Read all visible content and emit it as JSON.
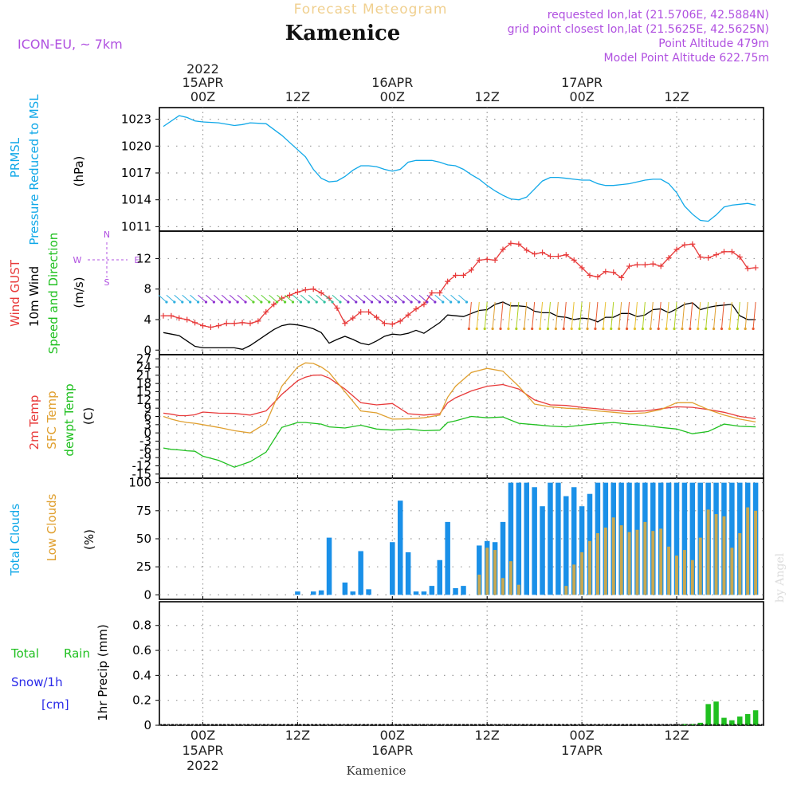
{
  "header": {
    "title": "Forecast Meteogram",
    "station": "Kamenice",
    "model": "ICON-EU, ~ 7km",
    "requested": "requested lon,lat (21.5706E, 42.5884N)",
    "gridpoint": "grid point closest lon,lat (21.5625E, 42.5625N)",
    "point_alt": "Point Altitude 479m",
    "model_alt": "Model Point Altitude 622.75m",
    "credit": "by Angel",
    "footer_station": "Kamenice"
  },
  "time_axis": {
    "top_labels": [
      {
        "l1": "2022",
        "l2": "15APR",
        "l3": "00Z",
        "h": 0
      },
      {
        "l1": "",
        "l2": "",
        "l3": "12Z",
        "h": 12
      },
      {
        "l1": "",
        "l2": "16APR",
        "l3": "00Z",
        "h": 24
      },
      {
        "l1": "",
        "l2": "",
        "l3": "12Z",
        "h": 36
      },
      {
        "l1": "",
        "l2": "17APR",
        "l3": "00Z",
        "h": 48
      },
      {
        "l1": "",
        "l2": "",
        "l3": "12Z",
        "h": 60
      }
    ],
    "bottom_labels": [
      {
        "l1": "00Z",
        "l2": "15APR",
        "l3": "2022",
        "h": 0
      },
      {
        "l1": "12Z",
        "l2": "",
        "l3": "",
        "h": 12
      },
      {
        "l1": "00Z",
        "l2": "16APR",
        "l3": "",
        "h": 24
      },
      {
        "l1": "12Z",
        "l2": "",
        "l3": "",
        "h": 36
      },
      {
        "l1": "00Z",
        "l2": "17APR",
        "l3": "",
        "h": 48
      },
      {
        "l1": "12Z",
        "l2": "",
        "l3": "",
        "h": 60
      }
    ]
  },
  "colors": {
    "pressure": "#10a8e8",
    "gust": "#e83a3a",
    "wind": "#000000",
    "t2m": "#e83a3a",
    "sfc": "#e0a030",
    "dew": "#20c020",
    "total_clouds": "#1a90e8",
    "low_clouds": "#c8a850",
    "rain": "#20c020",
    "snow": "#2a2ae8",
    "meta": "#b050e0",
    "title": "#f0d090",
    "grid": "#999999"
  },
  "chart_data": [
    {
      "type": "line",
      "panel": "pressure",
      "ylabel1": "PRMSL",
      "ylabel2": "Pressure Reduced to MSL",
      "unit": "(hPa)",
      "yticks": [
        1011,
        1014,
        1017,
        1020,
        1023
      ],
      "ylim": [
        1010.5,
        1024.3
      ],
      "x_hours": [
        -5,
        -3,
        -2,
        -1,
        0,
        2,
        4,
        5,
        6,
        8,
        10,
        11,
        12,
        13,
        14,
        15,
        16,
        17,
        18,
        19,
        20,
        21,
        22,
        23,
        24,
        25,
        26,
        27,
        28,
        29,
        30,
        31,
        32,
        33,
        34,
        35,
        36,
        37,
        38,
        39,
        40,
        41,
        42,
        43,
        44,
        45,
        46,
        47,
        48,
        49,
        50,
        51,
        52,
        53,
        54,
        55,
        56,
        57,
        58,
        59,
        60,
        61,
        62,
        63,
        64,
        65,
        66,
        67,
        68,
        69,
        70
      ],
      "series": [
        {
          "name": "PRMSL",
          "values": [
            1022.2,
            1023.4,
            1023.2,
            1022.8,
            1022.7,
            1022.6,
            1022.3,
            1022.4,
            1022.6,
            1022.5,
            1021.2,
            1020.4,
            1019.6,
            1018.8,
            1017.4,
            1016.4,
            1016.0,
            1016.1,
            1016.6,
            1017.3,
            1017.8,
            1017.8,
            1017.7,
            1017.4,
            1017.2,
            1017.4,
            1018.2,
            1018.4,
            1018.4,
            1018.4,
            1018.2,
            1017.9,
            1017.8,
            1017.4,
            1016.8,
            1016.3,
            1015.6,
            1015.0,
            1014.5,
            1014.1,
            1014.0,
            1014.3,
            1015.2,
            1016.1,
            1016.5,
            1016.5,
            1016.4,
            1016.3,
            1016.2,
            1016.2,
            1015.8,
            1015.6,
            1015.6,
            1015.7,
            1015.8,
            1016.0,
            1016.2,
            1016.3,
            1016.3,
            1015.8,
            1014.8,
            1013.3,
            1012.4,
            1011.7,
            1011.6,
            1012.3,
            1013.2,
            1013.4,
            1013.5,
            1013.6,
            1013.4
          ]
        }
      ]
    },
    {
      "type": "line",
      "panel": "wind",
      "ylabel1": "Wind GUST",
      "ylabel2": "10m Wind",
      "ylabel3": "Speed and Direction",
      "unit": "(m/s)",
      "compass": {
        "w": "W",
        "e": "E",
        "n": "N",
        "s": "S"
      },
      "yticks": [
        0,
        4,
        8,
        12
      ],
      "ylim": [
        -0.6,
        15.6
      ],
      "x_hours": [
        -5,
        -4,
        -3,
        -2,
        -1,
        0,
        1,
        2,
        3,
        4,
        5,
        6,
        7,
        8,
        9,
        10,
        11,
        12,
        13,
        14,
        15,
        16,
        17,
        18,
        19,
        20,
        21,
        22,
        23,
        24,
        25,
        26,
        27,
        28,
        29,
        30,
        31,
        32,
        33,
        34,
        35,
        36,
        37,
        38,
        39,
        40,
        41,
        42,
        43,
        44,
        45,
        46,
        47,
        48,
        49,
        50,
        51,
        52,
        53,
        54,
        55,
        56,
        57,
        58,
        59,
        60,
        61,
        62,
        63,
        64,
        65,
        66,
        67,
        68,
        69,
        70
      ],
      "series": [
        {
          "name": "Wind GUST",
          "values": [
            4.5,
            4.5,
            4.2,
            4.0,
            3.6,
            3.2,
            3.0,
            3.2,
            3.5,
            3.5,
            3.6,
            3.5,
            3.8,
            5.0,
            6.0,
            6.8,
            7.2,
            7.6,
            7.9,
            8.0,
            7.5,
            6.8,
            5.5,
            3.5,
            4.2,
            5.0,
            5.0,
            4.3,
            3.5,
            3.4,
            3.8,
            4.6,
            5.4,
            6.0,
            7.5,
            7.5,
            9.0,
            9.8,
            9.8,
            10.5,
            11.8,
            11.9,
            11.8,
            13.2,
            14.0,
            13.9,
            13.1,
            12.6,
            12.8,
            12.3,
            12.3,
            12.5,
            11.8,
            10.8,
            9.8,
            9.6,
            10.3,
            10.2,
            9.5,
            11.0,
            11.2,
            11.2,
            11.3,
            11.0,
            12.1,
            13.2,
            13.8,
            13.9,
            12.2,
            12.1,
            12.5,
            12.9,
            12.9,
            12.2,
            10.7,
            10.8
          ]
        },
        {
          "name": "10m Wind",
          "values": [
            2.3,
            2.1,
            1.9,
            1.2,
            0.5,
            0.3,
            0.3,
            0.3,
            0.3,
            0.3,
            0.1,
            0.6,
            1.3,
            2.0,
            2.7,
            3.2,
            3.4,
            3.3,
            3.1,
            2.8,
            2.3,
            0.9,
            1.4,
            1.8,
            1.4,
            0.9,
            0.7,
            1.2,
            1.8,
            2.1,
            2.0,
            2.2,
            2.6,
            2.2,
            2.9,
            3.6,
            4.6,
            4.5,
            4.4,
            4.8,
            5.2,
            5.3,
            6.0,
            6.3,
            5.8,
            5.8,
            5.7,
            5.1,
            4.9,
            4.9,
            4.4,
            4.3,
            4.0,
            4.2,
            4.1,
            3.7,
            4.3,
            4.3,
            4.8,
            4.8,
            4.4,
            4.6,
            5.3,
            5.4,
            4.9,
            5.4,
            6.0,
            6.2,
            5.3,
            5.6,
            5.8,
            5.9,
            6.0,
            4.5,
            4.0,
            4.0
          ]
        }
      ]
    },
    {
      "type": "line",
      "panel": "temperature",
      "ylabel1": "2m Temp",
      "ylabel2": "SFC Temp",
      "ylabel3": "dewpt Temp",
      "unit": "(C)",
      "yticks": [
        -15,
        -12,
        -9,
        -6,
        -3,
        0,
        3,
        6,
        9,
        12,
        15,
        18,
        21,
        24,
        27
      ],
      "ylim": [
        -16.5,
        28.5
      ],
      "x_hours": [
        -5,
        -4,
        -3,
        -2,
        -1,
        0,
        2,
        4,
        6,
        8,
        10,
        12,
        13,
        14,
        15,
        16,
        18,
        20,
        22,
        24,
        26,
        28,
        30,
        31,
        32,
        34,
        36,
        38,
        40,
        42,
        44,
        46,
        48,
        50,
        52,
        54,
        56,
        58,
        60,
        62,
        64,
        66,
        68,
        70
      ],
      "series": [
        {
          "name": "2m Temp",
          "values": [
            7.2,
            6.8,
            6.3,
            6.3,
            6.6,
            7.6,
            7.2,
            7.1,
            6.5,
            8.0,
            14.0,
            19.0,
            20.3,
            21.0,
            21.1,
            20.0,
            16.0,
            11.0,
            10.2,
            10.7,
            7.0,
            6.5,
            7.0,
            11.0,
            12.8,
            15.3,
            17.0,
            17.6,
            16.0,
            12.0,
            10.2,
            10.0,
            9.3,
            8.8,
            8.2,
            7.8,
            8.0,
            8.8,
            9.5,
            9.3,
            8.5,
            7.5,
            6.0,
            5.2
          ]
        },
        {
          "name": "SFC Temp",
          "values": [
            6.0,
            5.0,
            4.3,
            3.8,
            3.5,
            3.0,
            2.0,
            0.8,
            0.0,
            3.5,
            17.0,
            24.0,
            25.5,
            25.3,
            24.0,
            22.0,
            15.0,
            8.0,
            7.3,
            5.0,
            5.1,
            5.5,
            6.5,
            13.0,
            17.0,
            22.0,
            23.5,
            22.5,
            17.0,
            10.5,
            9.5,
            9.0,
            8.7,
            8.0,
            7.5,
            7.0,
            7.3,
            8.5,
            11.0,
            11.0,
            8.5,
            6.5,
            5.0,
            4.0
          ]
        },
        {
          "name": "dewpt Temp",
          "values": [
            -5.5,
            -6.0,
            -6.2,
            -6.5,
            -6.7,
            -8.5,
            -10.0,
            -12.5,
            -10.5,
            -7.0,
            2.0,
            3.8,
            3.8,
            3.5,
            3.2,
            2.2,
            1.8,
            2.8,
            1.4,
            1.0,
            1.4,
            0.8,
            1.0,
            3.8,
            4.4,
            6.0,
            5.5,
            5.8,
            3.5,
            3.0,
            2.5,
            2.2,
            2.8,
            3.4,
            3.8,
            3.2,
            2.7,
            2.0,
            1.4,
            -0.3,
            0.5,
            3.2,
            2.4,
            2.2
          ]
        }
      ]
    },
    {
      "type": "bar",
      "panel": "clouds",
      "ylabel1": "Total Clouds",
      "ylabel2": "Low Clouds",
      "unit": "(%)",
      "yticks": [
        0,
        25,
        50,
        75,
        100
      ],
      "ylim": [
        -4,
        104
      ],
      "x_hours": [
        -4,
        -3,
        -2,
        -1,
        0,
        1,
        2,
        3,
        4,
        5,
        6,
        7,
        8,
        9,
        10,
        11,
        12,
        13,
        14,
        15,
        16,
        17,
        18,
        19,
        20,
        21,
        22,
        23,
        24,
        25,
        26,
        27,
        28,
        29,
        30,
        31,
        32,
        33,
        34,
        35,
        36,
        37,
        38,
        39,
        40,
        41,
        42,
        43,
        44,
        45,
        46,
        47,
        48,
        49,
        50,
        51,
        52,
        53,
        54,
        55,
        56,
        57,
        58,
        59,
        60,
        61,
        62,
        63,
        64,
        65,
        66,
        67,
        68,
        69,
        70
      ],
      "series": [
        {
          "name": "Total Clouds",
          "values": [
            0,
            0,
            0,
            0,
            0,
            0,
            0,
            0,
            0,
            0,
            0,
            0,
            0,
            0,
            0,
            0,
            3,
            0,
            3,
            4,
            51,
            0,
            11,
            3,
            39,
            5,
            0,
            0,
            47,
            84,
            38,
            3,
            3,
            8,
            31,
            65,
            6,
            8,
            0,
            44,
            48,
            47,
            65,
            100,
            100,
            100,
            96,
            79,
            100,
            100,
            88,
            96,
            79,
            90,
            100,
            100,
            100,
            100,
            100,
            100,
            100,
            100,
            100,
            100,
            100,
            100,
            100,
            100,
            100,
            100,
            100,
            100,
            100,
            100,
            100
          ]
        },
        {
          "name": "Low Clouds",
          "values": [
            0,
            0,
            0,
            0,
            0,
            0,
            0,
            0,
            0,
            0,
            0,
            0,
            0,
            0,
            0,
            0,
            0,
            0,
            0,
            0,
            0,
            0,
            0,
            0,
            0,
            0,
            0,
            0,
            0,
            0,
            0,
            0,
            0,
            0,
            0,
            0,
            0,
            0,
            0,
            18,
            42,
            40,
            15,
            30,
            9,
            0,
            0,
            0,
            0,
            0,
            8,
            27,
            38,
            48,
            55,
            60,
            69,
            62,
            56,
            58,
            65,
            57,
            59,
            43,
            35,
            40,
            31,
            51,
            76,
            72,
            70,
            42,
            55,
            78,
            75
          ]
        }
      ]
    },
    {
      "type": "bar",
      "panel": "precip",
      "ylabel1": "Total",
      "ylabel1b": "Rain",
      "ylabel2": "Snow/1h",
      "ylabel3": "[cm]",
      "unit": "1hr Precip (mm)",
      "yticks": [
        0,
        0.2,
        0.4,
        0.6,
        0.8
      ],
      "ylim": [
        0,
        0.99
      ],
      "x_hours": [
        61,
        62,
        63,
        64,
        65,
        66,
        67,
        68,
        69,
        70
      ],
      "series": [
        {
          "name": "Total Rain",
          "values": [
            0.01,
            0.01,
            0.02,
            0.17,
            0.19,
            0.06,
            0.04,
            0.07,
            0.09,
            0.12
          ]
        }
      ]
    }
  ]
}
